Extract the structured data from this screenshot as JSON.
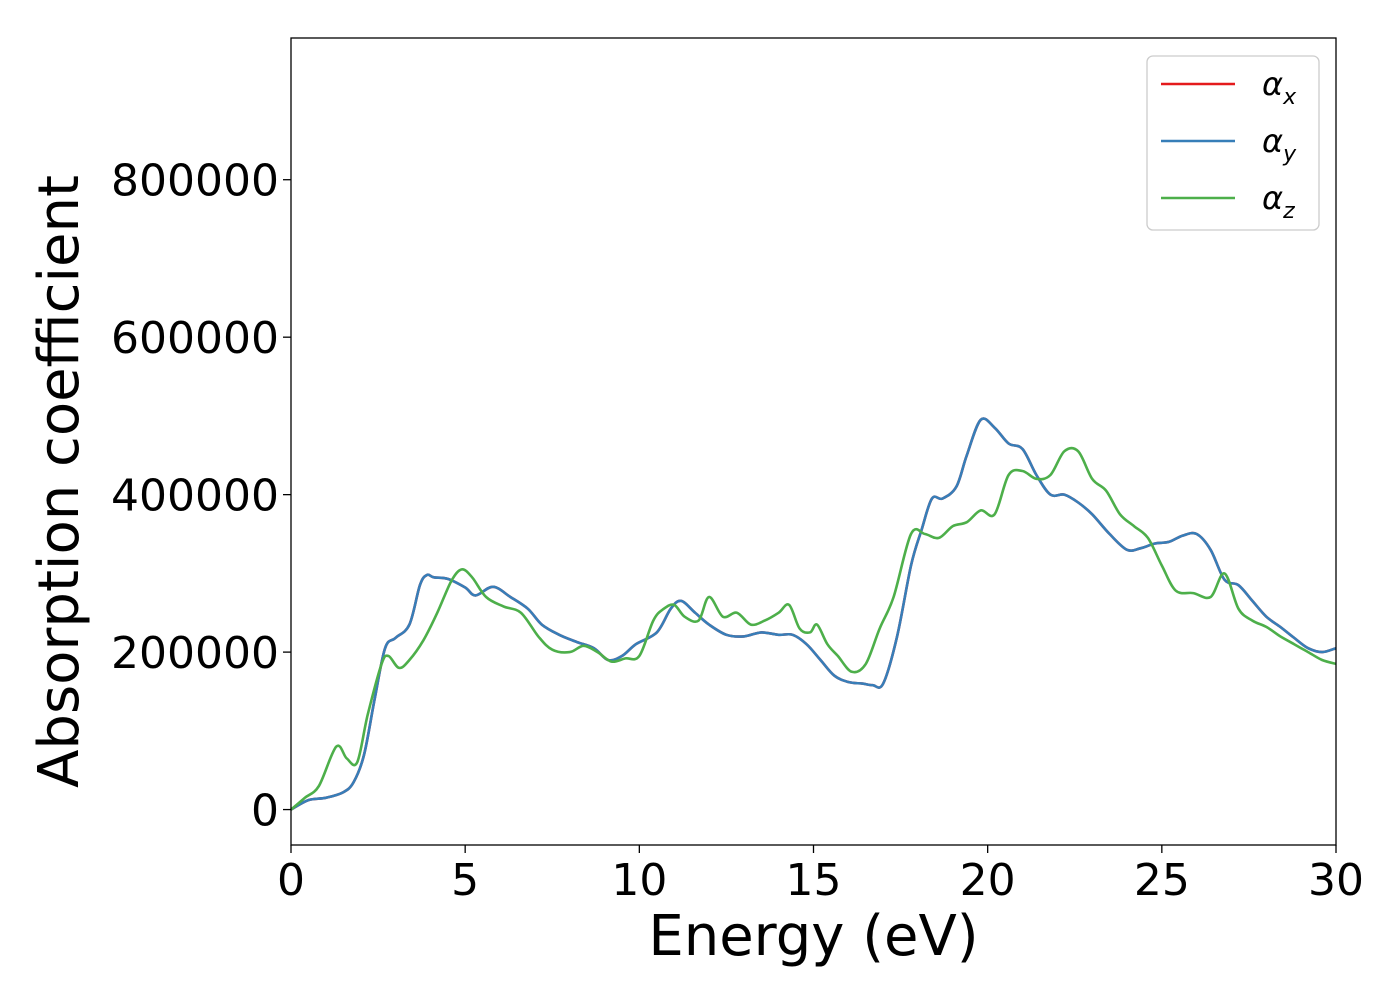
{
  "chart_data": {
    "type": "line",
    "xlabel": "Energy (eV)",
    "ylabel": "Absorption coefficient",
    "xlim": [
      0,
      30
    ],
    "ylim": [
      -45000,
      980000
    ],
    "xticks": [
      0,
      5,
      10,
      15,
      20,
      25,
      30
    ],
    "yticks": [
      0,
      200000,
      400000,
      600000,
      800000
    ],
    "xtick_labels": [
      "0",
      "5",
      "10",
      "15",
      "20",
      "25",
      "30"
    ],
    "ytick_labels": [
      "0",
      "200000",
      "400000",
      "600000",
      "800000"
    ],
    "grid": false,
    "legend_position": "top-right",
    "series": [
      {
        "name": "αx",
        "legend_base": "α",
        "legend_sub": "x",
        "color": "#e41a1c",
        "x": [
          0,
          0.5,
          1,
          1.5,
          1.8,
          2.1,
          2.4,
          2.7,
          3,
          3.4,
          3.7,
          3.9,
          4.1,
          4.5,
          5,
          5.3,
          5.8,
          6.3,
          6.8,
          7.2,
          7.7,
          8.2,
          8.7,
          9.1,
          9.5,
          9.9,
          10.5,
          10.9,
          11.2,
          11.6,
          12,
          12.5,
          13,
          13.5,
          14,
          14.4,
          14.8,
          15.2,
          15.6,
          16,
          16.4,
          16.7,
          17,
          17.4,
          17.8,
          18.1,
          18.4,
          18.7,
          19.1,
          19.4,
          19.8,
          20.2,
          20.6,
          21,
          21.4,
          21.8,
          22.2,
          22.6,
          23,
          23.5,
          24,
          24.4,
          24.8,
          25.2,
          25.6,
          26,
          26.4,
          26.8,
          27.2,
          27.6,
          28,
          28.4,
          28.8,
          29.2,
          29.6,
          30
        ],
        "y": [
          0,
          12000,
          15000,
          22000,
          35000,
          70000,
          140000,
          205000,
          218000,
          235000,
          285000,
          298000,
          295000,
          293000,
          282000,
          272000,
          283000,
          270000,
          255000,
          235000,
          222000,
          213000,
          205000,
          190000,
          195000,
          210000,
          225000,
          255000,
          265000,
          250000,
          235000,
          222000,
          220000,
          225000,
          222000,
          222000,
          210000,
          190000,
          170000,
          162000,
          160000,
          158000,
          160000,
          220000,
          310000,
          355000,
          395000,
          395000,
          410000,
          450000,
          495000,
          485000,
          465000,
          458000,
          425000,
          400000,
          400000,
          390000,
          375000,
          350000,
          330000,
          332000,
          338000,
          340000,
          348000,
          350000,
          330000,
          292000,
          285000,
          265000,
          245000,
          232000,
          218000,
          205000,
          200000,
          205000
        ]
      },
      {
        "name": "αy",
        "legend_base": "α",
        "legend_sub": "y",
        "color": "#377eb8",
        "x": [
          0,
          0.5,
          1,
          1.5,
          1.8,
          2.1,
          2.4,
          2.7,
          3,
          3.4,
          3.7,
          3.9,
          4.1,
          4.5,
          5,
          5.3,
          5.8,
          6.3,
          6.8,
          7.2,
          7.7,
          8.2,
          8.7,
          9.1,
          9.5,
          9.9,
          10.5,
          10.9,
          11.2,
          11.6,
          12,
          12.5,
          13,
          13.5,
          14,
          14.4,
          14.8,
          15.2,
          15.6,
          16,
          16.4,
          16.7,
          17,
          17.4,
          17.8,
          18.1,
          18.4,
          18.7,
          19.1,
          19.4,
          19.8,
          20.2,
          20.6,
          21,
          21.4,
          21.8,
          22.2,
          22.6,
          23,
          23.5,
          24,
          24.4,
          24.8,
          25.2,
          25.6,
          26,
          26.4,
          26.8,
          27.2,
          27.6,
          28,
          28.4,
          28.8,
          29.2,
          29.6,
          30
        ],
        "y": [
          0,
          12000,
          15000,
          22000,
          35000,
          70000,
          140000,
          205000,
          218000,
          235000,
          285000,
          298000,
          295000,
          293000,
          282000,
          272000,
          283000,
          270000,
          255000,
          235000,
          222000,
          213000,
          205000,
          190000,
          195000,
          210000,
          225000,
          255000,
          265000,
          250000,
          235000,
          222000,
          220000,
          225000,
          222000,
          222000,
          210000,
          190000,
          170000,
          162000,
          160000,
          158000,
          160000,
          220000,
          310000,
          355000,
          395000,
          395000,
          410000,
          450000,
          495000,
          485000,
          465000,
          458000,
          425000,
          400000,
          400000,
          390000,
          375000,
          350000,
          330000,
          332000,
          338000,
          340000,
          348000,
          350000,
          330000,
          292000,
          285000,
          265000,
          245000,
          232000,
          218000,
          205000,
          200000,
          205000
        ]
      },
      {
        "name": "αz",
        "legend_base": "α",
        "legend_sub": "z",
        "color": "#4daf4a",
        "x": [
          0,
          0.4,
          0.8,
          1.3,
          1.6,
          1.9,
          2.2,
          2.6,
          2.8,
          3.1,
          3.4,
          3.8,
          4.2,
          4.6,
          4.9,
          5.2,
          5.6,
          6.1,
          6.6,
          7.1,
          7.5,
          8,
          8.4,
          8.8,
          9.2,
          9.6,
          10,
          10.4,
          10.7,
          11,
          11.3,
          11.7,
          12,
          12.4,
          12.8,
          13.2,
          13.6,
          14,
          14.3,
          14.6,
          14.9,
          15.1,
          15.4,
          15.7,
          16.1,
          16.5,
          16.9,
          17.3,
          17.8,
          18.2,
          18.6,
          19,
          19.4,
          19.8,
          20.2,
          20.6,
          21,
          21.4,
          21.8,
          22.2,
          22.6,
          23,
          23.4,
          23.8,
          24.2,
          24.6,
          25,
          25.4,
          25.9,
          26.4,
          26.8,
          27.2,
          27.6,
          28,
          28.4,
          28.8,
          29.2,
          29.6,
          30
        ],
        "y": [
          0,
          15000,
          30000,
          80000,
          65000,
          60000,
          120000,
          185000,
          195000,
          180000,
          190000,
          215000,
          250000,
          290000,
          305000,
          295000,
          270000,
          258000,
          250000,
          220000,
          203000,
          200000,
          208000,
          200000,
          188000,
          192000,
          195000,
          240000,
          255000,
          260000,
          245000,
          240000,
          270000,
          245000,
          250000,
          235000,
          240000,
          250000,
          260000,
          230000,
          225000,
          235000,
          210000,
          195000,
          175000,
          185000,
          230000,
          270000,
          350000,
          350000,
          345000,
          360000,
          365000,
          380000,
          375000,
          425000,
          430000,
          420000,
          425000,
          455000,
          455000,
          420000,
          405000,
          375000,
          360000,
          345000,
          310000,
          278000,
          275000,
          270000,
          300000,
          255000,
          240000,
          232000,
          220000,
          210000,
          200000,
          190000,
          185000
        ]
      }
    ]
  }
}
